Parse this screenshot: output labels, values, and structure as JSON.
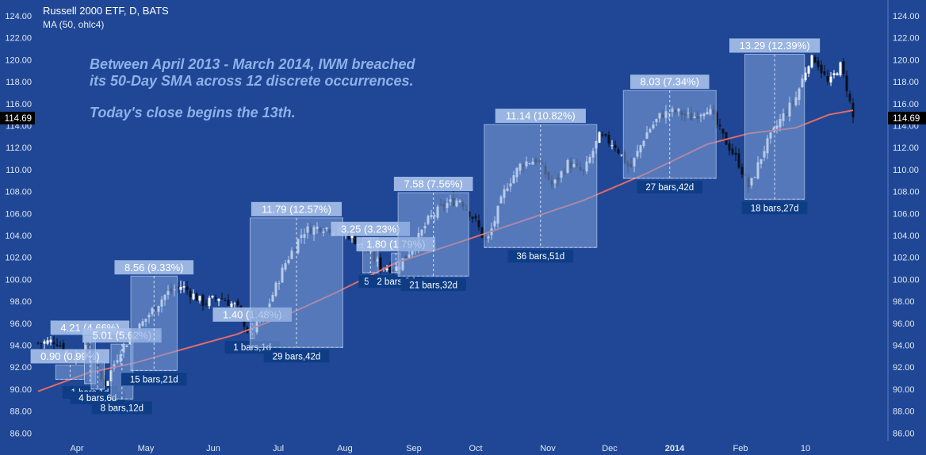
{
  "header": {
    "title": "Russell 2000 ETF, D, BATS",
    "indicator": "MA (50, ohlc4)"
  },
  "annotation": {
    "line1": "Between April 2013 - March 2014, IWM breached",
    "line2": "its 50-Day SMA across 12 discrete occurrences.",
    "line3": "Today's close begins the 13th."
  },
  "colors": {
    "background": "#1f4795",
    "up_candle": "#ffffff",
    "down_candle": "#0a0f1e",
    "ma_line": "#e06b6b",
    "box_fill": "#7fa0d8",
    "box_label": "#0e3d86",
    "last_price_bg": "#000000"
  },
  "chart_data": {
    "type": "candlestick",
    "title": "Russell 2000 ETF, D, BATS",
    "ylim": [
      85.3,
      125.3
    ],
    "y_ticks": [
      "86.00",
      "88.00",
      "90.00",
      "92.00",
      "94.00",
      "96.00",
      "98.00",
      "100.00",
      "102.00",
      "104.00",
      "106.00",
      "108.00",
      "110.00",
      "112.00",
      "114.00",
      "116.00",
      "118.00",
      "120.00",
      "122.00",
      "124.00"
    ],
    "x_ticks": [
      "Apr",
      "May",
      "Jun",
      "Jul",
      "Aug",
      "Sep",
      "Oct",
      "Nov",
      "Dec",
      "2014",
      "Feb",
      "10"
    ],
    "last_price": "114.69",
    "ma_label": "MA (50, ohlc4)",
    "close_path": [
      [
        "2013-03-20",
        94.2
      ],
      [
        "2013-03-28",
        94.4
      ],
      [
        "2013-04-05",
        92.9
      ],
      [
        "2013-04-12",
        93.8
      ],
      [
        "2013-04-19",
        90.2
      ],
      [
        "2013-04-26",
        93.5
      ],
      [
        "2013-05-03",
        95.2
      ],
      [
        "2013-05-10",
        97.0
      ],
      [
        "2013-05-17",
        98.7
      ],
      [
        "2013-05-24",
        99.4
      ],
      [
        "2013-06-03",
        97.8
      ],
      [
        "2013-06-10",
        98.4
      ],
      [
        "2013-06-18",
        97.5
      ],
      [
        "2013-06-24",
        94.8
      ],
      [
        "2013-07-01",
        97.0
      ],
      [
        "2013-07-10",
        101.5
      ],
      [
        "2013-07-18",
        104.4
      ],
      [
        "2013-07-26",
        104.8
      ],
      [
        "2013-08-02",
        104.5
      ],
      [
        "2013-08-08",
        104.0
      ],
      [
        "2013-08-15",
        102.8
      ],
      [
        "2013-08-22",
        101.2
      ],
      [
        "2013-08-29",
        101.0
      ],
      [
        "2013-09-06",
        103.0
      ],
      [
        "2013-09-13",
        105.5
      ],
      [
        "2013-09-20",
        106.8
      ],
      [
        "2013-09-27",
        107.3
      ],
      [
        "2013-10-04",
        105.3
      ],
      [
        "2013-10-09",
        103.2
      ],
      [
        "2013-10-18",
        108.5
      ],
      [
        "2013-10-25",
        110.6
      ],
      [
        "2013-11-01",
        110.9
      ],
      [
        "2013-11-08",
        108.5
      ],
      [
        "2013-11-15",
        110.6
      ],
      [
        "2013-11-22",
        109.7
      ],
      [
        "2013-11-29",
        113.0
      ],
      [
        "2013-12-06",
        112.3
      ],
      [
        "2013-12-13",
        110.0
      ],
      [
        "2013-12-20",
        113.2
      ],
      [
        "2013-12-27",
        115.0
      ],
      [
        "2014-01-03",
        115.3
      ],
      [
        "2014-01-10",
        114.7
      ],
      [
        "2014-01-17",
        115.7
      ],
      [
        "2014-01-24",
        113.0
      ],
      [
        "2014-01-31",
        110.7
      ],
      [
        "2014-02-05",
        108.3
      ],
      [
        "2014-02-12",
        112.0
      ],
      [
        "2014-02-19",
        114.5
      ],
      [
        "2014-02-26",
        116.5
      ],
      [
        "2014-03-04",
        119.9
      ],
      [
        "2014-03-07",
        120.1
      ],
      [
        "2014-03-13",
        117.7
      ],
      [
        "2014-03-18",
        119.6
      ],
      [
        "2014-03-21",
        117.6
      ],
      [
        "2014-03-24",
        114.69
      ]
    ],
    "ma_50": [
      [
        "2013-03-20",
        89.8
      ],
      [
        "2013-04-12",
        91.5
      ],
      [
        "2013-05-03",
        92.4
      ],
      [
        "2013-05-24",
        93.6
      ],
      [
        "2013-06-18",
        95.0
      ],
      [
        "2013-07-10",
        96.7
      ],
      [
        "2013-08-02",
        98.8
      ],
      [
        "2013-08-29",
        101.5
      ],
      [
        "2013-09-27",
        103.4
      ],
      [
        "2013-10-25",
        105.3
      ],
      [
        "2013-11-22",
        107.2
      ],
      [
        "2013-12-20",
        109.6
      ],
      [
        "2014-01-17",
        112.3
      ],
      [
        "2014-02-05",
        113.3
      ],
      [
        "2014-02-26",
        113.8
      ],
      [
        "2014-03-13",
        115.0
      ],
      [
        "2014-03-24",
        115.4
      ]
    ],
    "measurements": [
      {
        "label": "0.90 (0.99%)",
        "bars": "",
        "start": "2013-03-28",
        "end": "2013-04-10",
        "low": 90.9,
        "high": 92.2
      },
      {
        "label": "4.21 (4.66%)",
        "bars": "1 bars,1d",
        "start": "2013-04-10",
        "end": "2013-04-15",
        "low": 90.5,
        "high": 94.8
      },
      {
        "label": "",
        "bars": "4 bars,6d",
        "start": "2013-04-13",
        "end": "2013-04-19",
        "low": 90.0,
        "high": 92.5
      },
      {
        "label": "5.01 (5.62%)",
        "bars": "8 bars,12d",
        "start": "2013-04-22",
        "end": "2013-05-02",
        "low": 89.1,
        "high": 94.1
      },
      {
        "label": "8.56 (9.33%)",
        "bars": "15 bars,21d",
        "start": "2013-05-01",
        "end": "2013-05-22",
        "low": 91.7,
        "high": 100.3
      },
      {
        "label": "1.40 (1.48%)",
        "bars": "1 bars,1d",
        "start": "2013-06-24",
        "end": "2013-06-26",
        "low": 94.6,
        "high": 96.0
      },
      {
        "label": "11.79 (12.57%)",
        "bars": "29 bars,42d",
        "start": "2013-06-24",
        "end": "2013-08-05",
        "low": 93.8,
        "high": 105.6
      },
      {
        "label": "3.25 (3.23%)",
        "bars": "5 b",
        "start": "2013-08-14",
        "end": "2013-08-21",
        "low": 100.6,
        "high": 103.8
      },
      {
        "label": "1.80 (1.79%)",
        "bars": "2 bars,2d",
        "start": "2013-08-27",
        "end": "2013-08-31",
        "low": 100.6,
        "high": 102.4
      },
      {
        "label": "7.58 (7.56%)",
        "bars": "21 bars,32d",
        "start": "2013-08-30",
        "end": "2013-10-01",
        "low": 100.3,
        "high": 107.9
      },
      {
        "label": "11.14 (10.82%)",
        "bars": "36 bars,51d",
        "start": "2013-10-08",
        "end": "2013-11-28",
        "low": 102.9,
        "high": 114.1
      },
      {
        "label": "8.03 (7.34%)",
        "bars": "27 bars,42d",
        "start": "2013-12-10",
        "end": "2014-01-21",
        "low": 109.2,
        "high": 117.2
      },
      {
        "label": "13.29 (12.39%)",
        "bars": "18 bars,27d",
        "start": "2014-02-03",
        "end": "2014-03-02",
        "low": 107.3,
        "high": 120.5
      }
    ]
  }
}
